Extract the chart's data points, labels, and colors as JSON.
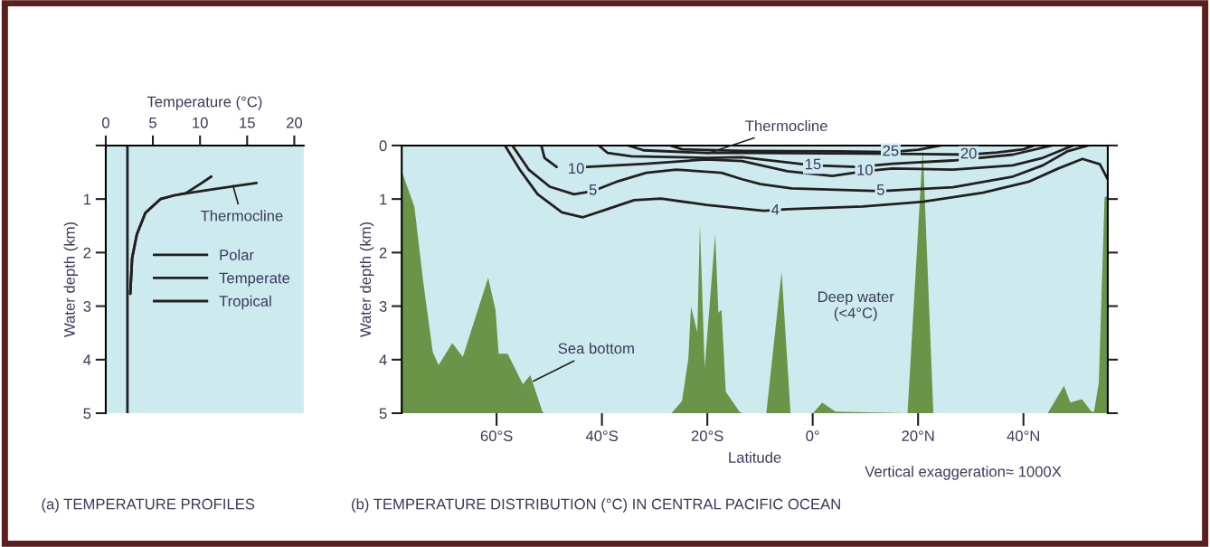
{
  "chart_data": [
    {
      "type": "line",
      "title": "(a) TEMPERATURE PROFILES",
      "xlabel": "Temperature (°C)",
      "ylabel": "Water depth (km)",
      "xlim": [
        0,
        21
      ],
      "xticks": [
        0,
        5,
        10,
        15,
        20
      ],
      "ylim": [
        5,
        0
      ],
      "yticks": [
        {
          "value": 0,
          "label": null
        },
        1,
        2,
        3,
        4,
        5
      ],
      "legend": "right",
      "grid": false,
      "series": [
        {
          "name": "Polar",
          "color": "#231f20",
          "x": [
            2.3,
            2.3
          ],
          "values": [
            0,
            5
          ]
        },
        {
          "name": "Temperate",
          "color": "#231f20",
          "x": [
            11.2,
            10,
            8.5,
            7.3,
            5.8,
            4.2,
            3.3,
            2.8,
            2.6
          ],
          "values": [
            0.58,
            0.72,
            0.89,
            0.93,
            1.0,
            1.26,
            1.66,
            2.1,
            2.77
          ]
        },
        {
          "name": "Tropical",
          "color": "#231f20",
          "x": [
            16.0,
            12,
            9,
            7.3,
            5.8,
            4.2,
            3.3,
            2.8,
            2.6
          ],
          "values": [
            0.7,
            0.8,
            0.88,
            0.93,
            1.0,
            1.26,
            1.66,
            2.1,
            2.77
          ]
        }
      ],
      "annotations": [
        {
          "text": "Thermocline",
          "x": 13.5,
          "y": 0.75
        }
      ]
    },
    {
      "type": "area",
      "title": "(b) TEMPERATURE DISTRIBUTION (°C) IN CENTRAL PACIFIC OCEAN",
      "xlabel": "Latitude",
      "ylabel": "Water depth (km)",
      "xlim": [
        -78,
        56
      ],
      "xticks": [
        {
          "value": -60,
          "label": "60°S"
        },
        {
          "value": -40,
          "label": "40°S"
        },
        {
          "value": -20,
          "label": "20°S"
        },
        {
          "value": 0,
          "label": "0°"
        },
        {
          "value": 20,
          "label": "20°N"
        },
        {
          "value": 40,
          "label": "40°N"
        }
      ],
      "ylim": [
        5,
        0
      ],
      "yticks": [
        0,
        1,
        2,
        3,
        4,
        5
      ],
      "legend": false,
      "grid": false,
      "series": [
        {
          "type": "area",
          "color": "#6a9448",
          "x": [
            -78,
            -78,
            -75.6,
            -73.9,
            -72.1,
            -71.0,
            -68.4,
            -66.4,
            -61.6,
            -60.2,
            -59.6,
            -57.9,
            -55.0,
            -53.6,
            -51.3,
            -51.0,
            -26.8,
            -24.8,
            -23.6,
            -23.1,
            -21.9,
            -21.4,
            -20.5,
            -18.5,
            -17.9,
            -17.3,
            -16.5,
            -13.9,
            -13.4,
            -8.8,
            -5.9,
            -4.2,
            0.05,
            1.8,
            4.3,
            18.0,
            20.9,
            22.9,
            44.6,
            47.7,
            48.9,
            51.1,
            52.9,
            53.4,
            54.3,
            55.4,
            56.0,
            56.0
          ],
          "values": [
            5,
            0.48,
            1.14,
            2.56,
            3.86,
            4.1,
            3.69,
            3.95,
            2.47,
            3.07,
            3.89,
            3.89,
            4.46,
            4.29,
            4.97,
            5,
            5,
            4.77,
            3.98,
            3.01,
            3.49,
            1.48,
            4.15,
            1.65,
            3.12,
            3.07,
            4.6,
            4.97,
            5,
            5,
            2.36,
            5,
            5,
            4.8,
            4.97,
            5,
            0.06,
            5,
            5,
            4.49,
            4.8,
            4.74,
            4.97,
            4.97,
            4.43,
            0.97,
            0.94,
            5
          ]
        },
        {
          "type": "line",
          "color": "#231f20",
          "x": [
            -58.4,
            -55.6,
            -52.2,
            -47.6,
            -43.6,
            -39.0,
            -33.9,
            -28.8,
            -20.2,
            -9.3,
            -4.8,
            9.5,
            20.9,
            32.3,
            40.9,
            46.6,
            51.2,
            54.5,
            56.0
          ],
          "values": [
            0.0,
            0.45,
            0.91,
            1.25,
            1.34,
            1.19,
            1.02,
            0.99,
            1.11,
            1.22,
            1.19,
            1.14,
            1.05,
            0.88,
            0.68,
            0.43,
            0.25,
            0.35,
            0.63
          ]
        },
        {
          "type": "line",
          "color": "#231f20",
          "x": [
            -57.0,
            -53.9,
            -49.9,
            -45.3,
            -41.7,
            -37.3,
            -31.6,
            -25.9,
            -17.3,
            -13.4,
            -9.9,
            -4.0,
            12.9,
            26.6,
            38.0,
            43.7,
            48.3,
            52.3
          ],
          "values": [
            0.0,
            0.45,
            0.77,
            0.91,
            0.85,
            0.68,
            0.51,
            0.45,
            0.51,
            0.63,
            0.72,
            0.8,
            0.85,
            0.78,
            0.58,
            0.37,
            0.11,
            0.0
          ]
        },
        {
          "type": "line",
          "color": "#231f20",
          "x": [
            -51.5,
            -50.9,
            -48.6,
            -44.9,
            -42.9,
            -31.6,
            -20.2,
            -13.4,
            -4.8,
            3.7,
            9.9,
            15.1,
            26.6,
            38.0,
            43.7,
            49.4
          ],
          "values": [
            0.0,
            0.23,
            0.4,
            null,
            0.4,
            0.34,
            0.26,
            0.29,
            0.48,
            0.57,
            0.48,
            0.43,
            0.45,
            0.37,
            0.23,
            0.0
          ]
        },
        {
          "type": "line",
          "color": "#231f20",
          "x": [
            -40.6,
            -38.9,
            -34.4,
            -20.2,
            -13.4,
            0.05,
            8.4,
            15.1,
            26.6,
            38.0,
            45.4
          ],
          "values": [
            0.0,
            0.14,
            0.2,
            0.23,
            0.22,
            0.37,
            0.4,
            0.34,
            0.28,
            0.17,
            0.0
          ]
        },
        {
          "type": "line",
          "color": "#231f20",
          "x": [
            -35.0,
            -32.1,
            -20.2,
            -13.4,
            10,
            20,
            29.6,
            35,
            40,
            42
          ],
          "values": [
            0.0,
            0.09,
            0.14,
            0.14,
            0.15,
            0.16,
            0.17,
            0.13,
            0.07,
            0.0
          ]
        },
        {
          "type": "line",
          "color": "#231f20",
          "x": [
            -27.0,
            -24.8,
            -13.4,
            5,
            14.8,
            20,
            24.3
          ],
          "values": [
            0.0,
            0.07,
            0.1,
            0.11,
            0.12,
            0.08,
            0.0
          ]
        }
      ],
      "annotations": [
        {
          "text": "Thermocline",
          "x": -20,
          "y": 0.15
        },
        {
          "text": "Sea bottom",
          "x": -53,
          "y": 4.4
        },
        "Deep water\n(<4°C)",
        "Vertical exaggeration≈ 1000X",
        {
          "text": "10",
          "x": -44.9,
          "y": 0.45
        },
        {
          "text": "5",
          "x": -41.7,
          "y": 0.85
        },
        {
          "text": "4",
          "x": -7.1,
          "y": 1.22
        },
        {
          "text": "15",
          "x": 0.05,
          "y": 0.37
        },
        {
          "text": "10",
          "x": 9.9,
          "y": 0.48
        },
        {
          "text": "5",
          "x": 12.9,
          "y": 0.85
        },
        {
          "text": "25",
          "x": 14.8,
          "y": 0.12
        },
        {
          "text": "20",
          "x": 29.6,
          "y": 0.17
        }
      ]
    }
  ]
}
